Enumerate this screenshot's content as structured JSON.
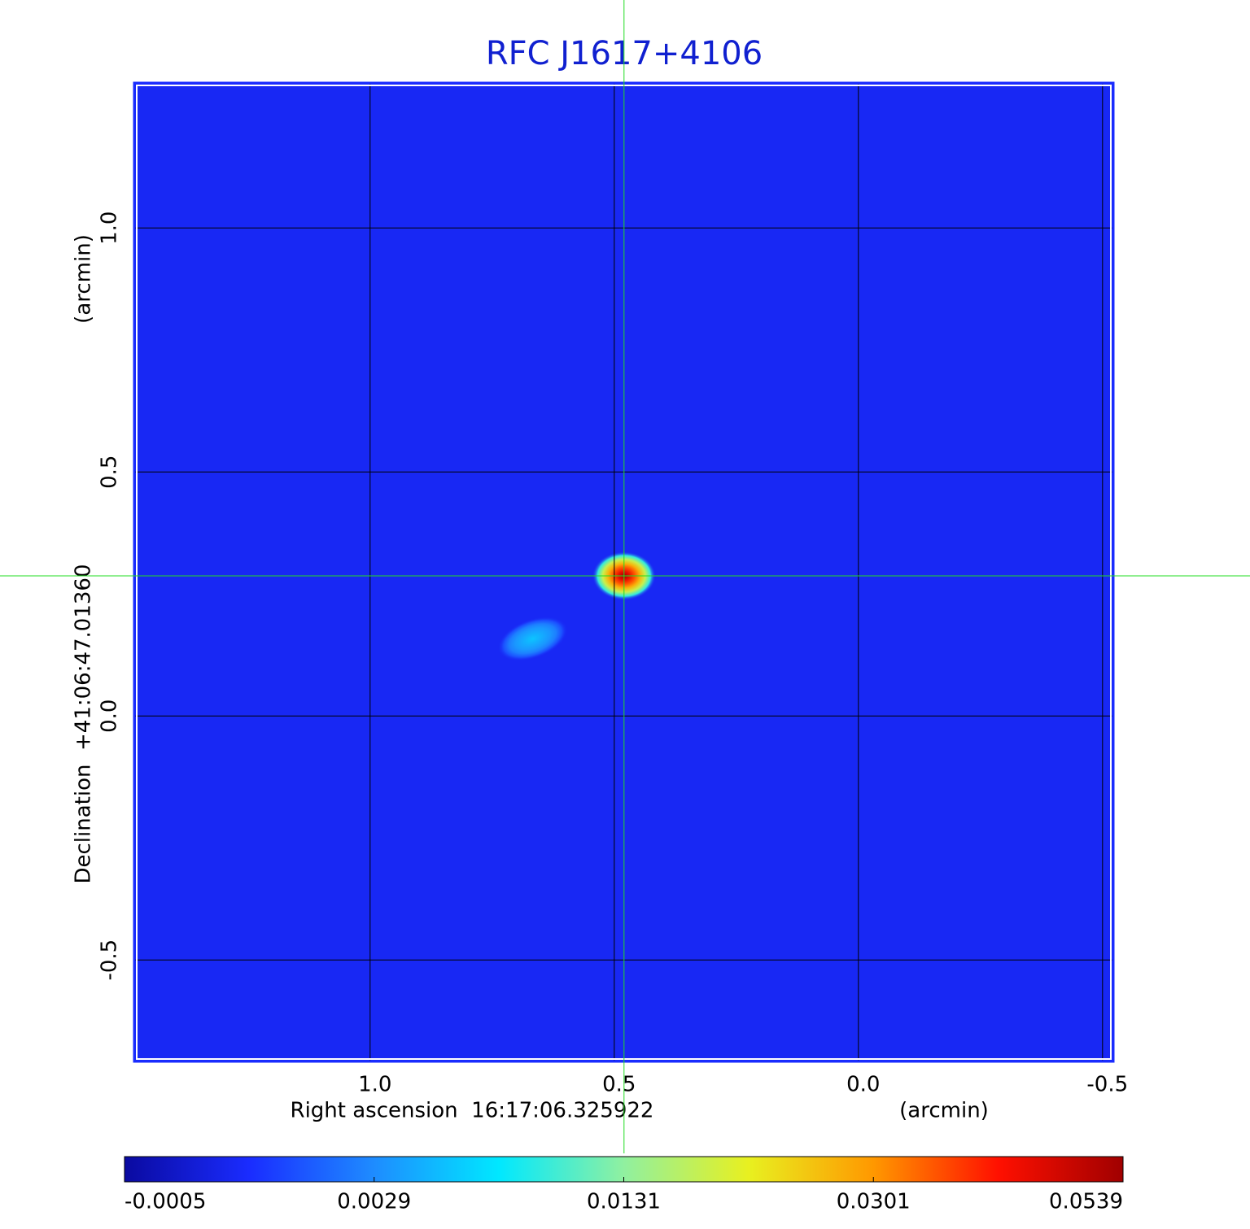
{
  "chart_data": {
    "type": "image",
    "title": "RFC J1617+4106",
    "xlabel": "Right ascension  16:17:06.325922",
    "xunit": "(arcmin)",
    "ylabel": "Declination  +41:06:47.01360",
    "yunit": "(arcmin)",
    "xlim": [
      1.483,
      -0.522
    ],
    "ylim": [
      -0.708,
      1.297
    ],
    "xticks": [
      {
        "value": 1,
        "label": "1.0"
      },
      0.5,
      {
        "value": 0,
        "label": "0.0"
      },
      -0.5
    ],
    "yticks": [
      {
        "value": -0.5,
        "label": "-0.5"
      },
      {
        "value": 0,
        "label": "0.0"
      },
      0.5,
      {
        "value": 1,
        "label": "1.0"
      }
    ],
    "grid": true,
    "background": 0.001,
    "sources": [
      {
        "x": 0.48,
        "y": 0.287,
        "peak": 0.0539,
        "width": 0.13,
        "height": 0.1,
        "angle": 0
      },
      {
        "x": 0.667,
        "y": 0.158,
        "peak": 0.006,
        "width": 0.15,
        "height": 0.08,
        "angle": -20
      }
    ],
    "crosshair": {
      "x": 0.48,
      "y": 0.287,
      "color": "#22dd22"
    },
    "cbticks": [
      -0.0005,
      0.0029,
      0.0131,
      0.0301,
      0.0539
    ],
    "colormap": [
      "#0a0aa0",
      "#1a2cff",
      "#1e8cff",
      "#00e8ff",
      "#90f0a0",
      "#e8f020",
      "#ff9800",
      "#ff1000",
      "#a00000"
    ]
  }
}
